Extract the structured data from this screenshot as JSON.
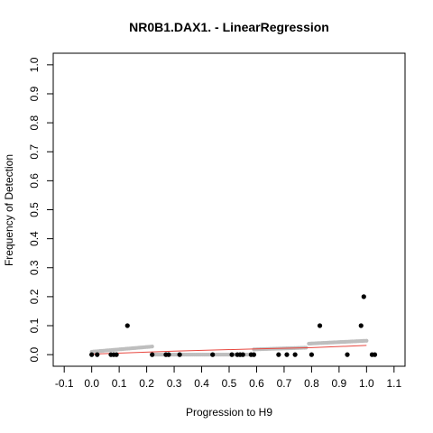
{
  "chart_data": {
    "type": "scatter",
    "title": "NR0B1.DAX1. - LinearRegression",
    "xlabel": "Progression to H9",
    "ylabel": "Frequency of Detection",
    "xlim": [
      -0.14,
      1.14
    ],
    "ylim": [
      -0.04,
      1.04
    ],
    "x_ticks": [
      "-0.1",
      "0.0",
      "0.1",
      "0.2",
      "0.3",
      "0.4",
      "0.5",
      "0.6",
      "0.7",
      "0.8",
      "0.9",
      "1.0",
      "1.1"
    ],
    "y_ticks": [
      "0.0",
      "0.1",
      "0.2",
      "0.3",
      "0.4",
      "0.5",
      "0.6",
      "0.7",
      "0.8",
      "0.9",
      "1.0"
    ],
    "grid": false,
    "legend": "none",
    "colors": {
      "observed": "#000000",
      "fitted": "#bebebe",
      "trend": "#e8473f"
    },
    "series": [
      {
        "type": "scatter",
        "color": "#000000",
        "points": [
          [
            0.0,
            0.0
          ],
          [
            0.02,
            0.0
          ],
          [
            0.07,
            0.0
          ],
          [
            0.08,
            0.0
          ],
          [
            0.09,
            0.0
          ],
          [
            0.13,
            0.1
          ],
          [
            0.22,
            0.0
          ],
          [
            0.27,
            0.0
          ],
          [
            0.28,
            0.0
          ],
          [
            0.32,
            0.0
          ],
          [
            0.44,
            0.0
          ],
          [
            0.51,
            0.0
          ],
          [
            0.53,
            0.0
          ],
          [
            0.54,
            0.0
          ],
          [
            0.55,
            0.0
          ],
          [
            0.58,
            0.0
          ],
          [
            0.59,
            0.0
          ],
          [
            0.68,
            0.0
          ],
          [
            0.71,
            0.0
          ],
          [
            0.74,
            0.0
          ],
          [
            0.8,
            0.0
          ],
          [
            0.83,
            0.1
          ],
          [
            0.93,
            0.0
          ],
          [
            0.98,
            0.1
          ],
          [
            0.99,
            0.2
          ],
          [
            1.02,
            0.0
          ],
          [
            1.03,
            0.0
          ]
        ]
      },
      {
        "type": "band",
        "color": "#bebebe",
        "segments": [
          {
            "x": [
              0.0,
              0.22
            ],
            "y": [
              0.01,
              0.028
            ]
          },
          {
            "x": [
              0.22,
              0.58
            ],
            "y": [
              0.0,
              0.0
            ]
          },
          {
            "x": [
              0.59,
              0.78
            ],
            "y": [
              0.018,
              0.024
            ]
          },
          {
            "x": [
              0.79,
              1.0
            ],
            "y": [
              0.038,
              0.048
            ]
          }
        ]
      },
      {
        "type": "line",
        "color": "#e8473f",
        "points": [
          [
            0.0,
            0.002
          ],
          [
            0.3,
            0.012
          ],
          [
            0.6,
            0.02
          ],
          [
            0.8,
            0.024
          ],
          [
            1.0,
            0.032
          ]
        ]
      }
    ]
  }
}
